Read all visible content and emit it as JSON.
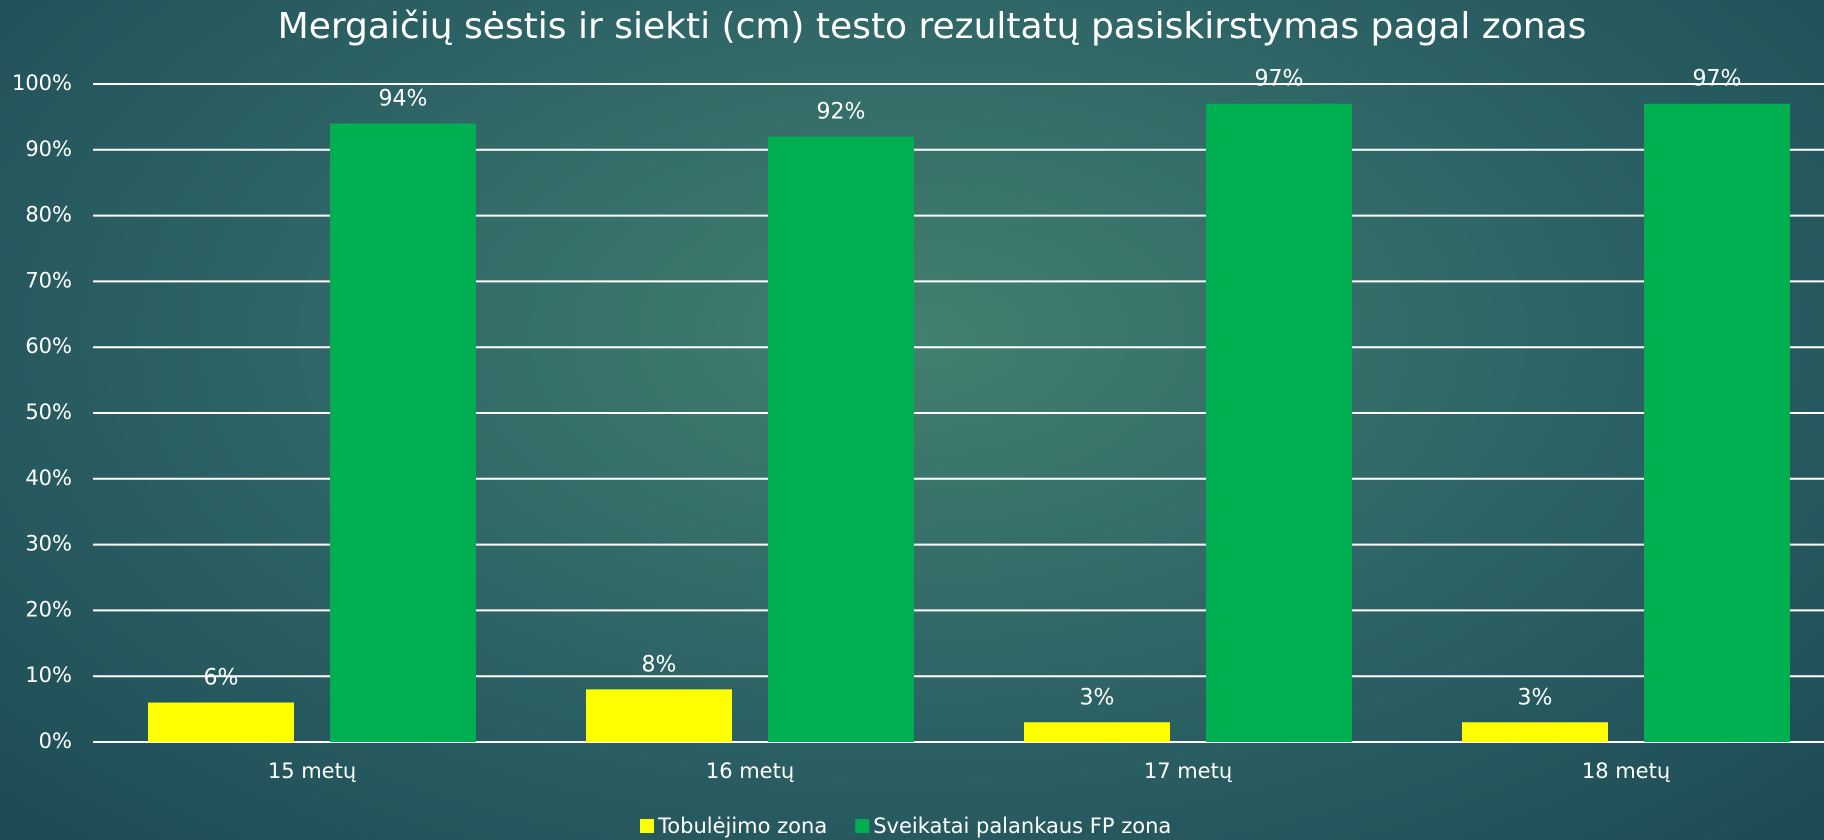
{
  "chart_data": {
    "type": "bar",
    "title": "Mergaičių sėstis ir siekti (cm) testo rezultatų pasiskirstymas pagal zonas",
    "categories": [
      "15 metų",
      "16 metų",
      "17 metų",
      "18 metų"
    ],
    "series": [
      {
        "name": "Tobulėjimo zona",
        "color": "#ffff00",
        "values": [
          6,
          8,
          3,
          3
        ],
        "value_labels": [
          "6%",
          "8%",
          "3%",
          "3%"
        ]
      },
      {
        "name": "Sveikatai palankaus FP zona",
        "color": "#00b050",
        "values": [
          94,
          92,
          97,
          97
        ],
        "value_labels": [
          "94%",
          "92%",
          "97%",
          "97%"
        ]
      }
    ],
    "ylim": [
      0,
      100
    ],
    "yticks": [
      {
        "value": 0,
        "label": "0%"
      },
      {
        "value": 10,
        "label": "10%"
      },
      {
        "value": 20,
        "label": "20%"
      },
      {
        "value": 30,
        "label": "30%"
      },
      {
        "value": 40,
        "label": "40%"
      },
      {
        "value": 50,
        "label": "50%"
      },
      {
        "value": 60,
        "label": "60%"
      },
      {
        "value": 70,
        "label": "70%"
      },
      {
        "value": 80,
        "label": "80%"
      },
      {
        "value": 90,
        "label": "90%"
      },
      {
        "value": 100,
        "label": "100%"
      }
    ],
    "grid": true,
    "legend": "bottom"
  }
}
